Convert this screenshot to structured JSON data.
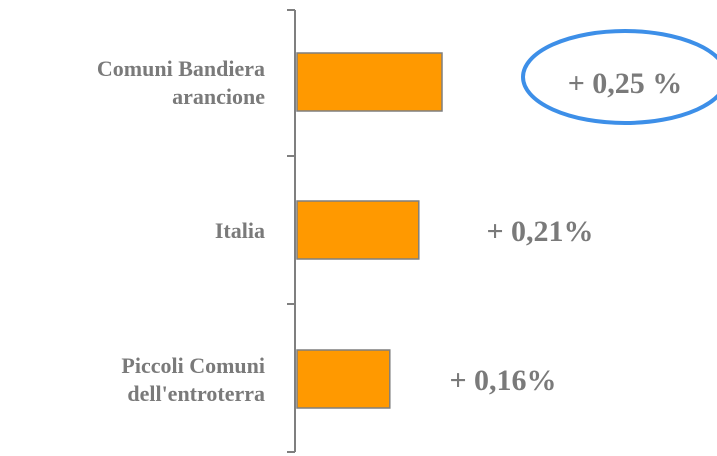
{
  "chart_data": {
    "type": "bar",
    "orientation": "horizontal",
    "categories": [
      [
        "Comuni Bandiera",
        "arancione"
      ],
      [
        "Italia"
      ],
      [
        "Piccoli Comuni",
        "dell'entroterra"
      ]
    ],
    "values": [
      0.25,
      0.21,
      0.16
    ],
    "data_labels": [
      "+ 0,25 %",
      "+ 0,21%",
      "+ 0,16%"
    ],
    "highlighted_index": 0,
    "xlim": [
      0,
      0.25
    ],
    "grid": false,
    "legend": "none"
  },
  "colors": {
    "bar_fill": "#FF9900",
    "bar_stroke": "#7F7F7F",
    "axis": "#7F7F7F",
    "text": "#7A7A7A",
    "highlight_ellipse": "#3D8FE8"
  }
}
